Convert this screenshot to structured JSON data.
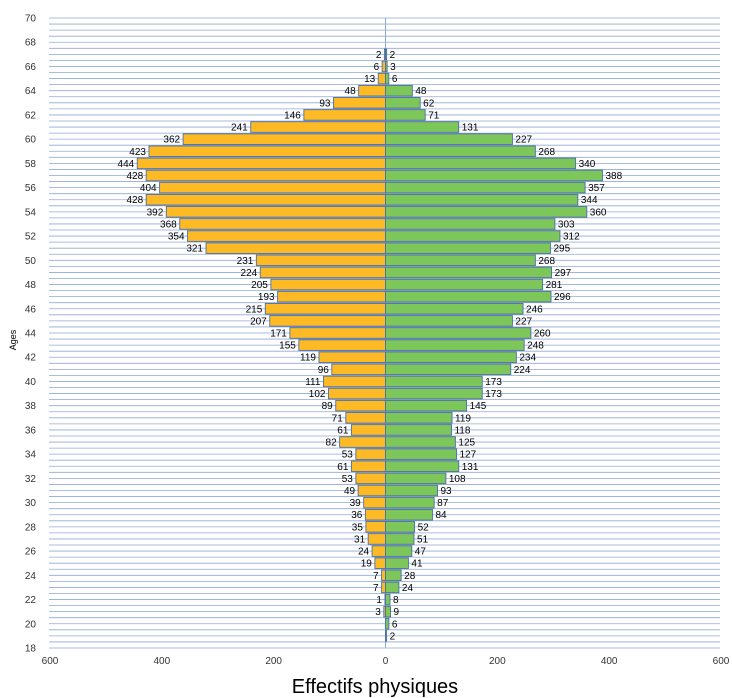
{
  "chart_data": {
    "type": "bar",
    "orientation": "horizontal",
    "title": "",
    "xlabel": "Effectifs physiques",
    "ylabel": "Ages",
    "xlim": [
      -600,
      600
    ],
    "x_tick_labels": [
      "600",
      "400",
      "200",
      "0",
      "200",
      "400",
      "600"
    ],
    "ylim": [
      18,
      70
    ],
    "y_tick_labels": [
      "18",
      "20",
      "22",
      "24",
      "26",
      "28",
      "30",
      "32",
      "34",
      "36",
      "38",
      "40",
      "42",
      "44",
      "46",
      "48",
      "50",
      "52",
      "54",
      "56",
      "58",
      "60",
      "62",
      "64",
      "66",
      "68",
      "70"
    ],
    "grid": true,
    "colors": {
      "left": "#FDBA24",
      "right": "#7DC65A",
      "outline": "#4A6FA5",
      "grid": "#8FA9D8"
    },
    "series": [
      {
        "side": "left",
        "points": [
          {
            "age": 21,
            "value": 3
          },
          {
            "age": 22,
            "value": 1
          },
          {
            "age": 23,
            "value": 7
          },
          {
            "age": 24,
            "value": 7
          },
          {
            "age": 25,
            "value": 19
          },
          {
            "age": 26,
            "value": 24
          },
          {
            "age": 27,
            "value": 31
          },
          {
            "age": 28,
            "value": 35
          },
          {
            "age": 29,
            "value": 36
          },
          {
            "age": 30,
            "value": 39
          },
          {
            "age": 31,
            "value": 49
          },
          {
            "age": 32,
            "value": 53
          },
          {
            "age": 33,
            "value": 61
          },
          {
            "age": 34,
            "value": 53
          },
          {
            "age": 35,
            "value": 82
          },
          {
            "age": 36,
            "value": 61
          },
          {
            "age": 37,
            "value": 71
          },
          {
            "age": 38,
            "value": 89
          },
          {
            "age": 39,
            "value": 102
          },
          {
            "age": 40,
            "value": 111
          },
          {
            "age": 41,
            "value": 96
          },
          {
            "age": 42,
            "value": 119
          },
          {
            "age": 43,
            "value": 155
          },
          {
            "age": 44,
            "value": 171
          },
          {
            "age": 45,
            "value": 207
          },
          {
            "age": 46,
            "value": 215
          },
          {
            "age": 47,
            "value": 193
          },
          {
            "age": 48,
            "value": 205
          },
          {
            "age": 49,
            "value": 224
          },
          {
            "age": 50,
            "value": 231
          },
          {
            "age": 51,
            "value": 321
          },
          {
            "age": 52,
            "value": 354
          },
          {
            "age": 53,
            "value": 368
          },
          {
            "age": 54,
            "value": 392
          },
          {
            "age": 55,
            "value": 428
          },
          {
            "age": 56,
            "value": 404
          },
          {
            "age": 57,
            "value": 428
          },
          {
            "age": 58,
            "value": 444
          },
          {
            "age": 59,
            "value": 423
          },
          {
            "age": 60,
            "value": 362
          },
          {
            "age": 61,
            "value": 241
          },
          {
            "age": 62,
            "value": 146
          },
          {
            "age": 63,
            "value": 93
          },
          {
            "age": 64,
            "value": 48
          },
          {
            "age": 65,
            "value": 13
          },
          {
            "age": 66,
            "value": 6
          },
          {
            "age": 67,
            "value": 2
          }
        ]
      },
      {
        "side": "right",
        "points": [
          {
            "age": 19,
            "value": 2
          },
          {
            "age": 20,
            "value": 6
          },
          {
            "age": 21,
            "value": 9
          },
          {
            "age": 22,
            "value": 8
          },
          {
            "age": 23,
            "value": 24
          },
          {
            "age": 24,
            "value": 28
          },
          {
            "age": 25,
            "value": 41
          },
          {
            "age": 26,
            "value": 47
          },
          {
            "age": 27,
            "value": 51
          },
          {
            "age": 28,
            "value": 52
          },
          {
            "age": 29,
            "value": 84
          },
          {
            "age": 30,
            "value": 87
          },
          {
            "age": 31,
            "value": 93
          },
          {
            "age": 32,
            "value": 108
          },
          {
            "age": 33,
            "value": 131
          },
          {
            "age": 34,
            "value": 127
          },
          {
            "age": 35,
            "value": 125
          },
          {
            "age": 36,
            "value": 118
          },
          {
            "age": 37,
            "value": 119
          },
          {
            "age": 38,
            "value": 145
          },
          {
            "age": 39,
            "value": 173
          },
          {
            "age": 40,
            "value": 173
          },
          {
            "age": 41,
            "value": 224
          },
          {
            "age": 42,
            "value": 234
          },
          {
            "age": 43,
            "value": 248
          },
          {
            "age": 44,
            "value": 260
          },
          {
            "age": 45,
            "value": 227
          },
          {
            "age": 46,
            "value": 246
          },
          {
            "age": 47,
            "value": 296
          },
          {
            "age": 48,
            "value": 281
          },
          {
            "age": 49,
            "value": 297
          },
          {
            "age": 50,
            "value": 268
          },
          {
            "age": 51,
            "value": 295
          },
          {
            "age": 52,
            "value": 312
          },
          {
            "age": 53,
            "value": 303
          },
          {
            "age": 54,
            "value": 360
          },
          {
            "age": 55,
            "value": 344
          },
          {
            "age": 56,
            "value": 357
          },
          {
            "age": 57,
            "value": 388
          },
          {
            "age": 58,
            "value": 340
          },
          {
            "age": 59,
            "value": 268
          },
          {
            "age": 60,
            "value": 227
          },
          {
            "age": 61,
            "value": 131
          },
          {
            "age": 62,
            "value": 71
          },
          {
            "age": 63,
            "value": 62
          },
          {
            "age": 64,
            "value": 48
          },
          {
            "age": 65,
            "value": 6
          },
          {
            "age": 66,
            "value": 3
          },
          {
            "age": 67,
            "value": 2
          }
        ]
      }
    ]
  }
}
